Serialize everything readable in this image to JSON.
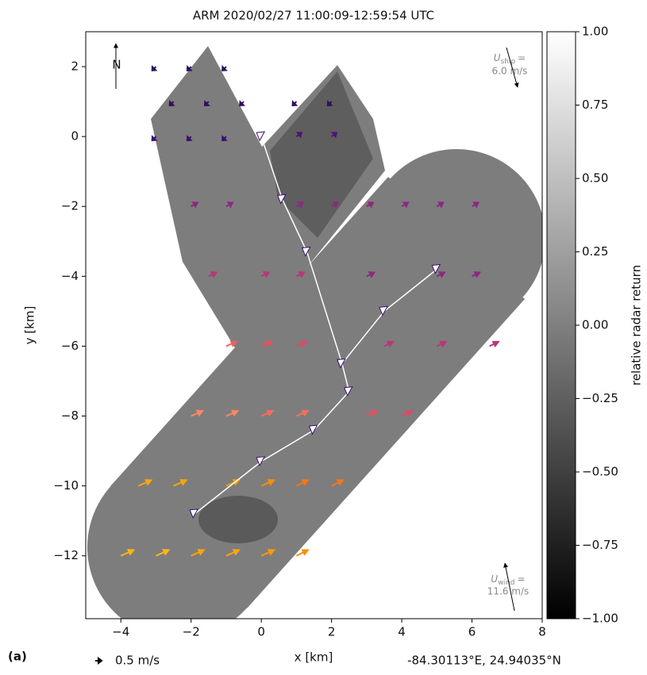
{
  "chart_data": {
    "type": "quiver",
    "title": "ARM 2020/02/27 11:00:09-12:59:54 UTC",
    "xlabel": "x [km]",
    "ylabel": "y [km]",
    "xlim": [
      -5,
      8
    ],
    "ylim": [
      -13.8,
      3
    ],
    "xticks": [
      {
        "value": -4,
        "label": "−4"
      },
      {
        "value": -2,
        "label": "−2"
      },
      0,
      2,
      4,
      6,
      8
    ],
    "yticks": [
      2,
      0,
      {
        "value": -2,
        "label": "−2"
      },
      {
        "value": -4,
        "label": "−4"
      },
      {
        "value": -6,
        "label": "−6"
      },
      {
        "value": -8,
        "label": "−8"
      },
      {
        "value": -10,
        "label": "−10"
      },
      {
        "value": -12,
        "label": "−12"
      }
    ],
    "colorbar": {
      "label": "relative radar return",
      "lim": [
        -1,
        1
      ],
      "colors": [
        "#000000",
        "#ffffff"
      ],
      "ticks": [
        {
          "value": 1,
          "label": "1.00"
        },
        {
          "value": 0.75,
          "label": "0.75"
        },
        {
          "value": 0.5,
          "label": "0.50"
        },
        {
          "value": 0.25,
          "label": "0.25"
        },
        {
          "value": 0,
          "label": "0.00"
        },
        {
          "value": -0.25,
          "label": "−0.25"
        },
        {
          "value": -0.5,
          "label": "−0.50"
        },
        {
          "value": -0.75,
          "label": "−0.75"
        },
        {
          "value": -1,
          "label": "−1.00"
        }
      ]
    },
    "arrows": [
      {
        "x": -3,
        "y": 2,
        "u": -0.3,
        "v": -0.3,
        "color": "#2c115f"
      },
      {
        "x": -2,
        "y": 2,
        "u": -0.3,
        "v": -0.3,
        "color": "#2c115f"
      },
      {
        "x": -1,
        "y": 2,
        "u": -0.3,
        "v": -0.3,
        "color": "#2c115f"
      },
      {
        "x": -2.5,
        "y": 1,
        "u": -0.3,
        "v": -0.3,
        "color": "#2c115f"
      },
      {
        "x": -1.5,
        "y": 1,
        "u": -0.3,
        "v": -0.3,
        "color": "#2c115f"
      },
      {
        "x": -0.5,
        "y": 1,
        "u": -0.3,
        "v": -0.3,
        "color": "#2c115f"
      },
      {
        "x": 1,
        "y": 1,
        "u": -0.3,
        "v": -0.3,
        "color": "#2c115f"
      },
      {
        "x": 2,
        "y": 1,
        "u": -0.3,
        "v": -0.3,
        "color": "#2c115f"
      },
      {
        "x": -3,
        "y": 0,
        "u": -0.3,
        "v": -0.3,
        "color": "#3b0f70"
      },
      {
        "x": -2,
        "y": 0,
        "u": -0.3,
        "v": -0.3,
        "color": "#3b0f70"
      },
      {
        "x": -1,
        "y": 0,
        "u": -0.3,
        "v": -0.3,
        "color": "#3b0f70"
      },
      {
        "x": 1,
        "y": 0,
        "u": 0.4,
        "v": 0.3,
        "color": "#51127c"
      },
      {
        "x": 2,
        "y": 0,
        "u": 0.4,
        "v": 0.3,
        "color": "#51127c"
      },
      {
        "x": -2,
        "y": -2,
        "u": 0.5,
        "v": 0.3,
        "color": "#8c2981"
      },
      {
        "x": -1,
        "y": -2,
        "u": 0.5,
        "v": 0.3,
        "color": "#8c2981"
      },
      {
        "x": 1,
        "y": -2,
        "u": 0.5,
        "v": 0.3,
        "color": "#8c2981"
      },
      {
        "x": 2,
        "y": -2,
        "u": 0.5,
        "v": 0.3,
        "color": "#8c2981"
      },
      {
        "x": 3,
        "y": -2,
        "u": 0.5,
        "v": 0.3,
        "color": "#8c2981"
      },
      {
        "x": 4,
        "y": -2,
        "u": 0.5,
        "v": 0.3,
        "color": "#8c2981"
      },
      {
        "x": 5,
        "y": -2,
        "u": 0.5,
        "v": 0.3,
        "color": "#8c2981"
      },
      {
        "x": 6,
        "y": -2,
        "u": 0.5,
        "v": 0.3,
        "color": "#8c2981"
      },
      {
        "x": -1.5,
        "y": -4,
        "u": 0.6,
        "v": 0.3,
        "color": "#b73779"
      },
      {
        "x": 0,
        "y": -4,
        "u": 0.6,
        "v": 0.3,
        "color": "#b73779"
      },
      {
        "x": 1,
        "y": -4,
        "u": 0.6,
        "v": 0.3,
        "color": "#b73779"
      },
      {
        "x": 3,
        "y": -4,
        "u": 0.6,
        "v": 0.3,
        "color": "#8c2981"
      },
      {
        "x": 5,
        "y": -4,
        "u": 0.6,
        "v": 0.3,
        "color": "#8c2981"
      },
      {
        "x": 6,
        "y": -4,
        "u": 0.6,
        "v": 0.3,
        "color": "#8c2981"
      },
      {
        "x": -1,
        "y": -6,
        "u": 0.8,
        "v": 0.35,
        "color": "#f1605d"
      },
      {
        "x": 0,
        "y": -6,
        "u": 0.8,
        "v": 0.35,
        "color": "#e4515e"
      },
      {
        "x": 1,
        "y": -6,
        "u": 0.8,
        "v": 0.35,
        "color": "#de4968"
      },
      {
        "x": 3.5,
        "y": -6,
        "u": 0.7,
        "v": 0.35,
        "color": "#b73779"
      },
      {
        "x": 5,
        "y": -6,
        "u": 0.7,
        "v": 0.35,
        "color": "#b73779"
      },
      {
        "x": 6.5,
        "y": -6,
        "u": 0.7,
        "v": 0.35,
        "color": "#b73779"
      },
      {
        "x": -2,
        "y": -8,
        "u": 0.9,
        "v": 0.4,
        "color": "#fb8861"
      },
      {
        "x": -1,
        "y": -8,
        "u": 0.9,
        "v": 0.4,
        "color": "#fb8861"
      },
      {
        "x": 0,
        "y": -8,
        "u": 0.9,
        "v": 0.4,
        "color": "#f66e5c"
      },
      {
        "x": 1,
        "y": -8,
        "u": 0.9,
        "v": 0.4,
        "color": "#f66e5c"
      },
      {
        "x": 3,
        "y": -8,
        "u": 0.8,
        "v": 0.4,
        "color": "#e4515e"
      },
      {
        "x": 4,
        "y": -8,
        "u": 0.8,
        "v": 0.4,
        "color": "#de4968"
      },
      {
        "x": -3.5,
        "y": -10,
        "u": 1.0,
        "v": 0.45,
        "color": "#fca50a"
      },
      {
        "x": -2.5,
        "y": -10,
        "u": 1.0,
        "v": 0.45,
        "color": "#fca50a"
      },
      {
        "x": -1,
        "y": -10,
        "u": 1.0,
        "v": 0.45,
        "color": "#fb9b06"
      },
      {
        "x": 0,
        "y": -10,
        "u": 1.0,
        "v": 0.45,
        "color": "#f98e09"
      },
      {
        "x": 1,
        "y": -10,
        "u": 0.9,
        "v": 0.45,
        "color": "#f37819"
      },
      {
        "x": 2,
        "y": -10,
        "u": 0.9,
        "v": 0.45,
        "color": "#f37819"
      },
      {
        "x": -4,
        "y": -12,
        "u": 1.0,
        "v": 0.45,
        "color": "#fcb519"
      },
      {
        "x": -3,
        "y": -12,
        "u": 1.0,
        "v": 0.45,
        "color": "#fcb519"
      },
      {
        "x": -2,
        "y": -12,
        "u": 1.0,
        "v": 0.45,
        "color": "#fca50a"
      },
      {
        "x": -1,
        "y": -12,
        "u": 1.0,
        "v": 0.45,
        "color": "#fca50a"
      },
      {
        "x": 0,
        "y": -12,
        "u": 1.0,
        "v": 0.45,
        "color": "#fb9b06"
      },
      {
        "x": 1,
        "y": -12,
        "u": 0.9,
        "v": 0.45,
        "color": "#f98e09"
      }
    ],
    "fronts": [
      {
        "x": [
          0,
          0.6,
          1.3,
          2.3,
          2.5,
          1.5,
          0,
          -1.9
        ],
        "y": [
          0,
          -1.8,
          -3.3,
          -6.5,
          -7.3,
          -8.4,
          -9.3,
          -10.8
        ]
      },
      {
        "x": [
          5,
          3.5,
          2.3
        ],
        "y": [
          -3.8,
          -5,
          -6.5
        ]
      }
    ],
    "north_label": "N",
    "ship_label": {
      "symbol": "U",
      "subscript": "ship",
      "equals": "=",
      "speed": "6.0 m/s"
    },
    "wind_label": {
      "symbol": "U",
      "subscript": "wind",
      "equals": "=",
      "speed": "11.6 m/s"
    },
    "panel_label": "(a)",
    "key": {
      "value": 0.5,
      "label": "0.5 m/s"
    },
    "location": "-84.30113°E, 24.94035°N"
  }
}
